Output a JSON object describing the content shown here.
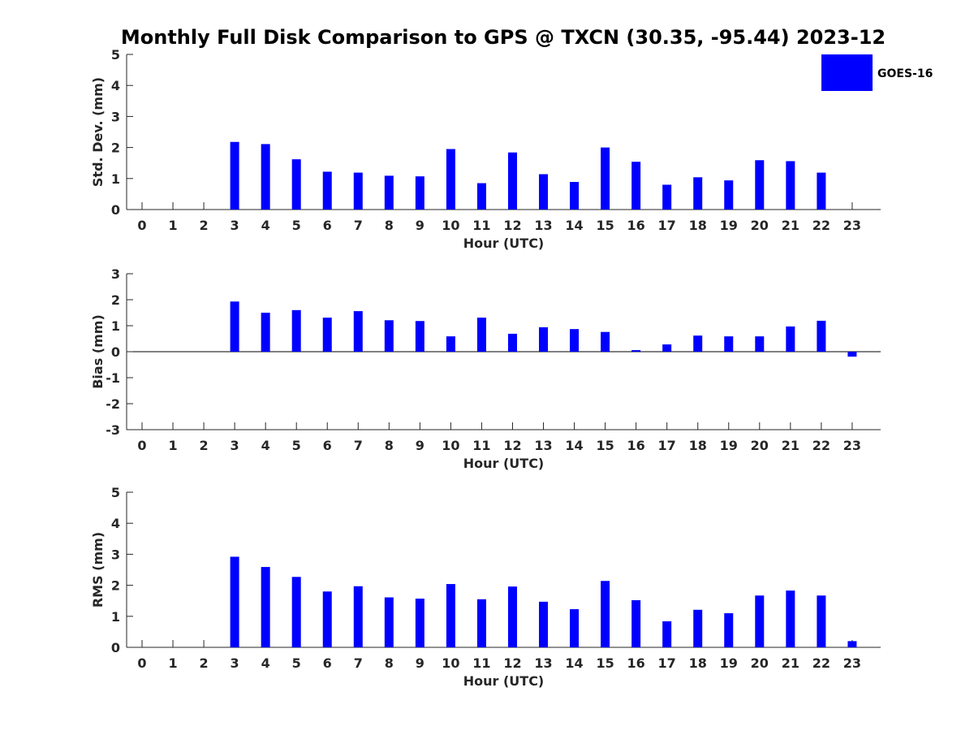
{
  "chart_data": {
    "title": "Monthly Full Disk Comparison to GPS @ TXCN (30.35, -95.44) 2023-12",
    "legend": [
      "GOES-16"
    ],
    "legend_position": "top-right",
    "series_color": "#0000ff",
    "panels": [
      {
        "type": "bar",
        "ylabel": "Std. Dev. (mm)",
        "xlabel": "Hour (UTC)",
        "ylim": [
          0,
          5
        ],
        "yticks": [
          0,
          1,
          2,
          3,
          4,
          5
        ],
        "categories": [
          "0",
          "1",
          "2",
          "3",
          "4",
          "5",
          "6",
          "7",
          "8",
          "9",
          "10",
          "11",
          "12",
          "13",
          "14",
          "15",
          "16",
          "17",
          "18",
          "19",
          "20",
          "21",
          "22",
          "23"
        ],
        "series": [
          {
            "name": "GOES-16",
            "values": [
              null,
              null,
              null,
              2.18,
              2.11,
              1.62,
              1.22,
              1.19,
              1.09,
              1.07,
              1.95,
              0.85,
              1.84,
              1.14,
              0.89,
              2.0,
              1.54,
              0.8,
              1.04,
              0.94,
              1.59,
              1.56,
              1.19,
              null
            ]
          }
        ]
      },
      {
        "type": "bar",
        "ylabel": "Bias (mm)",
        "xlabel": "Hour (UTC)",
        "ylim": [
          -3,
          3
        ],
        "yticks": [
          -3,
          -2,
          -1,
          0,
          1,
          2,
          3
        ],
        "categories": [
          "0",
          "1",
          "2",
          "3",
          "4",
          "5",
          "6",
          "7",
          "8",
          "9",
          "10",
          "11",
          "12",
          "13",
          "14",
          "15",
          "16",
          "17",
          "18",
          "19",
          "20",
          "21",
          "22",
          "23"
        ],
        "series": [
          {
            "name": "GOES-16",
            "values": [
              null,
              null,
              null,
              1.93,
              1.5,
              1.6,
              1.31,
              1.56,
              1.21,
              1.18,
              0.59,
              1.31,
              0.69,
              0.94,
              0.87,
              0.76,
              0.06,
              0.28,
              0.62,
              0.59,
              0.59,
              0.97,
              1.19,
              -0.19
            ]
          }
        ]
      },
      {
        "type": "bar",
        "ylabel": "RMS (mm)",
        "xlabel": "Hour (UTC)",
        "ylim": [
          0,
          5
        ],
        "yticks": [
          0,
          1,
          2,
          3,
          4,
          5
        ],
        "categories": [
          "0",
          "1",
          "2",
          "3",
          "4",
          "5",
          "6",
          "7",
          "8",
          "9",
          "10",
          "11",
          "12",
          "13",
          "14",
          "15",
          "16",
          "17",
          "18",
          "19",
          "20",
          "21",
          "22",
          "23"
        ],
        "series": [
          {
            "name": "GOES-16",
            "values": [
              null,
              null,
              null,
              2.92,
              2.59,
              2.27,
              1.8,
              1.97,
              1.61,
              1.57,
              2.04,
              1.55,
              1.96,
              1.47,
              1.23,
              2.14,
              1.52,
              0.84,
              1.21,
              1.1,
              1.67,
              1.83,
              1.67,
              0.2
            ]
          }
        ]
      }
    ]
  }
}
